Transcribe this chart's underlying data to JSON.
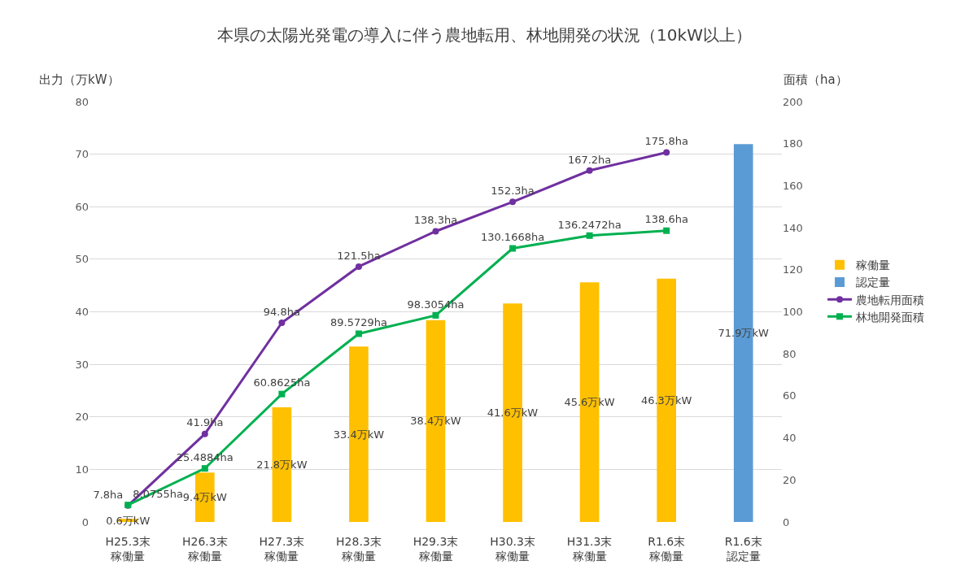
{
  "chart_data": {
    "type": "bar",
    "title": "本県の太陽光発電の導入に伴う農地転用、林地開発の状況（10kW以上）",
    "ylabel": "出力（万kW）",
    "y2label": "面積（ha）",
    "categories": [
      "H25.3末稼働量",
      "H26.3末稼働量",
      "H27.3末稼働量",
      "H28.3末稼働量",
      "H29.3末稼働量",
      "H30.3末稼働量",
      "H31.3末稼働量",
      "R1.6末稼働量",
      "R1.6末認定量"
    ],
    "series": [
      {
        "name": "稼働量",
        "color": "#ffc000",
        "values": [
          0.6,
          9.4,
          21.8,
          33.4,
          38.4,
          41.6,
          45.6,
          46.3,
          null
        ],
        "value_labels": [
          "0.6万kW",
          "9.4万kW",
          "21.8万kW",
          "33.4万kW",
          "38.4万kW",
          "41.6万kW",
          "45.6万kW",
          "46.3万kW",
          null
        ]
      },
      {
        "name": "認定量",
        "color": "#5b9bd5",
        "values": [
          null,
          null,
          null,
          null,
          null,
          null,
          null,
          null,
          71.9
        ],
        "value_labels": [
          null,
          null,
          null,
          null,
          null,
          null,
          null,
          null,
          "71.9万kW"
        ]
      },
      {
        "name": "農地転用面積",
        "type": "line",
        "axis": "y2",
        "marker": "circle",
        "color": "#7030a0",
        "values": [
          7.8,
          41.9,
          94.8,
          121.5,
          138.3,
          152.3,
          167.2,
          175.8,
          null
        ],
        "value_labels": [
          "7.8ha",
          "41.9ha",
          "94.8ha",
          "121.5ha",
          "138.3ha",
          "152.3ha",
          "167.2ha",
          "175.8ha",
          null
        ]
      },
      {
        "name": "林地開発面積",
        "type": "line",
        "axis": "y2",
        "marker": "square",
        "color": "#00b050",
        "values": [
          8.0755,
          25.4884,
          60.8625,
          89.5729,
          98.3054,
          130.1668,
          136.2472,
          138.6,
          null
        ],
        "value_labels": [
          "8.0755ha",
          "25.4884ha",
          "60.8625ha",
          "89.5729ha",
          "98.3054ha",
          "130.1668ha",
          "136.2472ha",
          "138.6ha",
          null
        ]
      }
    ],
    "ylim": [
      0,
      80
    ],
    "yticks": [
      0,
      10,
      20,
      30,
      40,
      50,
      60,
      70,
      80
    ],
    "y2lim": [
      0,
      200
    ],
    "y2ticks": [
      0,
      20,
      40,
      60,
      80,
      100,
      120,
      140,
      160,
      180,
      200
    ],
    "grid": "y",
    "legend": "right",
    "line_style": "solid"
  }
}
